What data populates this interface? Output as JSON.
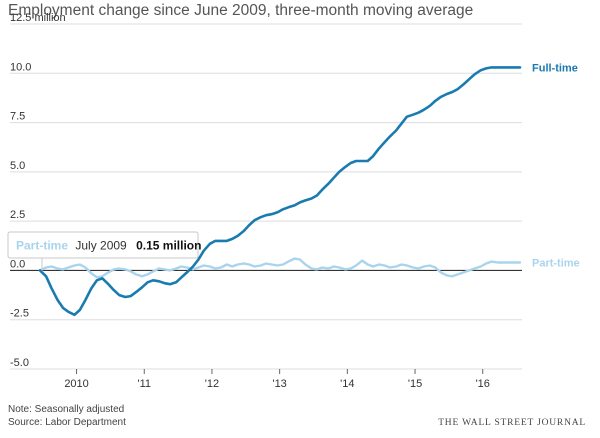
{
  "title": "Employment change since June 2009, three-month moving average",
  "note": "Note: Seasonally adjusted",
  "source": "Source: Labor Department",
  "publisher": "THE WALL STREET JOURNAL",
  "tooltip": {
    "series": "Part-time",
    "date": "July 2009",
    "value": "0.15 million"
  },
  "colors": {
    "full_time": "#1a7bb0",
    "part_time": "#a8d4ee",
    "grid": "#dddddd",
    "zero_line": "#333333"
  },
  "chart_data": {
    "type": "line",
    "ylabel": "million",
    "ylim": [
      -5.0,
      12.5
    ],
    "yticks": [
      12.5,
      10.0,
      7.5,
      5.0,
      2.5,
      0.0,
      -2.5,
      -5.0
    ],
    "ytick_labels": [
      "12.5 million",
      "10.0",
      "7.5",
      "5.0",
      "2.5",
      "0.0",
      "-2.5",
      "-5.0"
    ],
    "xlim": [
      2009.46,
      2016.58
    ],
    "xticks": [
      2010,
      2011,
      2012,
      2013,
      2014,
      2015,
      2016
    ],
    "xtick_labels": [
      "2010",
      "'11",
      "'12",
      "'13",
      "'14",
      "'15",
      "'16"
    ],
    "grid": true,
    "series": [
      {
        "name": "Full-time",
        "x": [
          2009.46,
          2009.55,
          2009.63,
          2009.72,
          2009.8,
          2009.88,
          2009.97,
          2010.05,
          2010.13,
          2010.22,
          2010.3,
          2010.38,
          2010.47,
          2010.55,
          2010.63,
          2010.72,
          2010.8,
          2010.88,
          2010.97,
          2011.05,
          2011.13,
          2011.22,
          2011.3,
          2011.38,
          2011.47,
          2011.55,
          2011.63,
          2011.72,
          2011.8,
          2011.88,
          2011.97,
          2012.05,
          2012.13,
          2012.22,
          2012.3,
          2012.38,
          2012.47,
          2012.55,
          2012.63,
          2012.72,
          2012.8,
          2012.88,
          2012.97,
          2013.05,
          2013.13,
          2013.22,
          2013.3,
          2013.38,
          2013.47,
          2013.55,
          2013.63,
          2013.72,
          2013.8,
          2013.88,
          2013.97,
          2014.05,
          2014.13,
          2014.22,
          2014.3,
          2014.38,
          2014.47,
          2014.55,
          2014.63,
          2014.72,
          2014.8,
          2014.88,
          2014.97,
          2015.05,
          2015.13,
          2015.22,
          2015.3,
          2015.38,
          2015.47,
          2015.55,
          2015.63,
          2015.72,
          2015.8,
          2015.88,
          2015.97,
          2016.05,
          2016.13,
          2016.22,
          2016.3,
          2016.38,
          2016.47,
          2016.55
        ],
        "values": [
          0.0,
          -0.3,
          -0.9,
          -1.5,
          -1.9,
          -2.1,
          -2.25,
          -2.0,
          -1.5,
          -0.9,
          -0.5,
          -0.4,
          -0.7,
          -1.0,
          -1.25,
          -1.35,
          -1.3,
          -1.1,
          -0.85,
          -0.6,
          -0.5,
          -0.55,
          -0.65,
          -0.7,
          -0.6,
          -0.35,
          -0.1,
          0.2,
          0.55,
          1.0,
          1.35,
          1.5,
          1.5,
          1.5,
          1.6,
          1.75,
          2.0,
          2.3,
          2.55,
          2.7,
          2.8,
          2.85,
          2.95,
          3.1,
          3.2,
          3.3,
          3.45,
          3.55,
          3.65,
          3.8,
          4.1,
          4.4,
          4.7,
          5.0,
          5.25,
          5.45,
          5.55,
          5.55,
          5.55,
          5.8,
          6.2,
          6.5,
          6.8,
          7.1,
          7.45,
          7.8,
          7.9,
          8.0,
          8.15,
          8.35,
          8.6,
          8.8,
          8.95,
          9.05,
          9.2,
          9.45,
          9.7,
          9.95,
          10.15,
          10.25,
          10.3,
          10.3,
          10.3,
          10.3,
          10.3,
          10.3
        ]
      },
      {
        "name": "Part-time",
        "x": [
          2009.46,
          2009.55,
          2009.63,
          2009.72,
          2009.8,
          2009.88,
          2009.97,
          2010.05,
          2010.13,
          2010.22,
          2010.3,
          2010.38,
          2010.47,
          2010.55,
          2010.63,
          2010.72,
          2010.8,
          2010.88,
          2010.97,
          2011.05,
          2011.13,
          2011.22,
          2011.3,
          2011.38,
          2011.47,
          2011.55,
          2011.63,
          2011.72,
          2011.8,
          2011.88,
          2011.97,
          2012.05,
          2012.13,
          2012.22,
          2012.3,
          2012.38,
          2012.47,
          2012.55,
          2012.63,
          2012.72,
          2012.8,
          2012.88,
          2012.97,
          2013.05,
          2013.13,
          2013.22,
          2013.3,
          2013.38,
          2013.47,
          2013.55,
          2013.63,
          2013.72,
          2013.8,
          2013.88,
          2013.97,
          2014.05,
          2014.13,
          2014.22,
          2014.3,
          2014.38,
          2014.47,
          2014.55,
          2014.63,
          2014.72,
          2014.8,
          2014.88,
          2014.97,
          2015.05,
          2015.13,
          2015.22,
          2015.3,
          2015.38,
          2015.47,
          2015.55,
          2015.63,
          2015.72,
          2015.8,
          2015.88,
          2015.97,
          2016.05,
          2016.13,
          2016.22,
          2016.3,
          2016.38,
          2016.47,
          2016.55
        ],
        "values": [
          0.0,
          0.15,
          0.2,
          0.1,
          0.05,
          0.15,
          0.25,
          0.3,
          0.15,
          -0.15,
          -0.35,
          -0.3,
          -0.1,
          0.05,
          0.1,
          0.05,
          -0.05,
          -0.2,
          -0.3,
          -0.2,
          -0.05,
          0.1,
          0.05,
          0.0,
          0.1,
          0.2,
          0.15,
          0.05,
          0.15,
          0.25,
          0.2,
          0.1,
          0.15,
          0.3,
          0.2,
          0.3,
          0.35,
          0.3,
          0.2,
          0.25,
          0.35,
          0.3,
          0.25,
          0.3,
          0.45,
          0.6,
          0.55,
          0.3,
          0.1,
          0.05,
          0.15,
          0.1,
          0.2,
          0.15,
          0.05,
          0.1,
          0.25,
          0.5,
          0.3,
          0.2,
          0.3,
          0.25,
          0.15,
          0.2,
          0.3,
          0.25,
          0.15,
          0.1,
          0.2,
          0.25,
          0.15,
          -0.1,
          -0.25,
          -0.3,
          -0.2,
          -0.1,
          0.0,
          0.1,
          0.2,
          0.35,
          0.45,
          0.4,
          0.4,
          0.4,
          0.4,
          0.4
        ]
      }
    ]
  }
}
